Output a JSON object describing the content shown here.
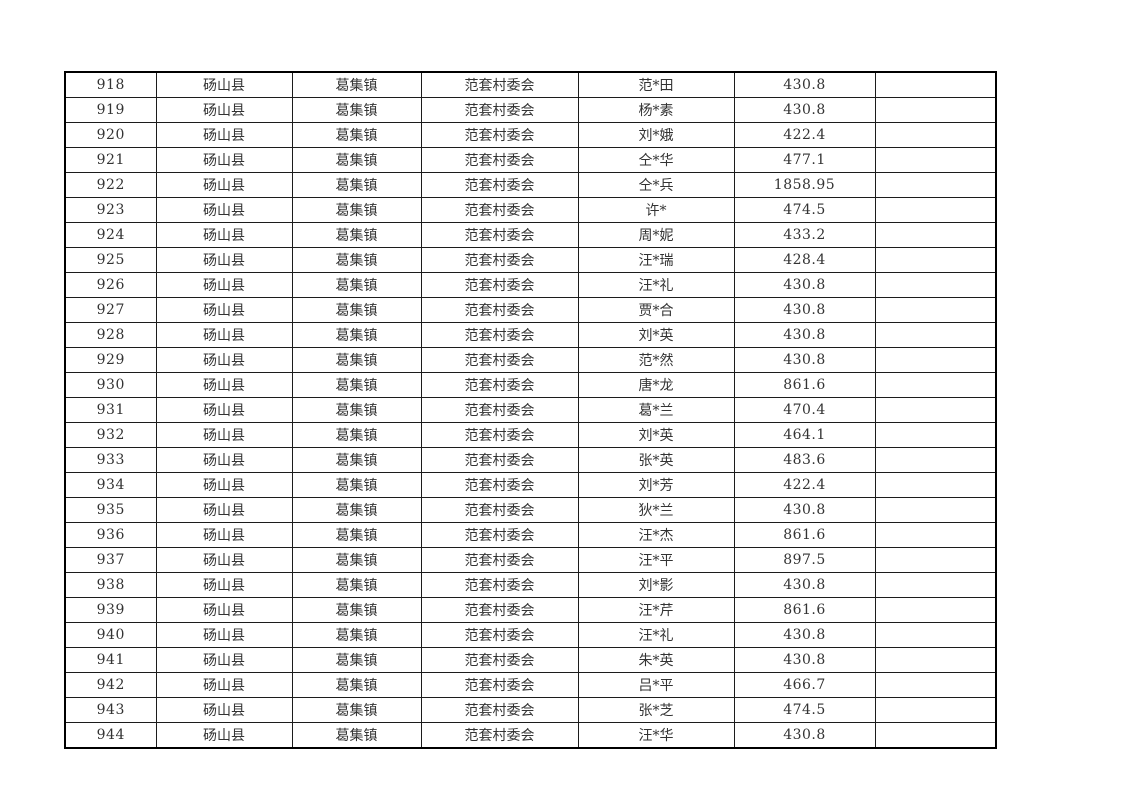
{
  "colors": {
    "background": "#ffffff",
    "border": "#1c1c1c",
    "outer_border": "#000000",
    "text": "#333333"
  },
  "table": {
    "column_keys": [
      "no",
      "county",
      "town",
      "village",
      "name",
      "amount",
      "note"
    ],
    "column_semantic_names": [
      "row-number-cell",
      "county-cell",
      "town-cell",
      "village-committee-cell",
      "masked-name-cell",
      "amount-cell",
      "empty-note-cell"
    ],
    "rows": [
      {
        "no": "918",
        "county": "砀山县",
        "town": "葛集镇",
        "village": "范套村委会",
        "name": "范*田",
        "amount": "430.8",
        "note": ""
      },
      {
        "no": "919",
        "county": "砀山县",
        "town": "葛集镇",
        "village": "范套村委会",
        "name": "杨*素",
        "amount": "430.8",
        "note": ""
      },
      {
        "no": "920",
        "county": "砀山县",
        "town": "葛集镇",
        "village": "范套村委会",
        "name": "刘*娥",
        "amount": "422.4",
        "note": ""
      },
      {
        "no": "921",
        "county": "砀山县",
        "town": "葛集镇",
        "village": "范套村委会",
        "name": "仝*华",
        "amount": "477.1",
        "note": ""
      },
      {
        "no": "922",
        "county": "砀山县",
        "town": "葛集镇",
        "village": "范套村委会",
        "name": "仝*兵",
        "amount": "1858.95",
        "note": ""
      },
      {
        "no": "923",
        "county": "砀山县",
        "town": "葛集镇",
        "village": "范套村委会",
        "name": "许*",
        "amount": "474.5",
        "note": ""
      },
      {
        "no": "924",
        "county": "砀山县",
        "town": "葛集镇",
        "village": "范套村委会",
        "name": "周*妮",
        "amount": "433.2",
        "note": ""
      },
      {
        "no": "925",
        "county": "砀山县",
        "town": "葛集镇",
        "village": "范套村委会",
        "name": "汪*瑞",
        "amount": "428.4",
        "note": ""
      },
      {
        "no": "926",
        "county": "砀山县",
        "town": "葛集镇",
        "village": "范套村委会",
        "name": "汪*礼",
        "amount": "430.8",
        "note": ""
      },
      {
        "no": "927",
        "county": "砀山县",
        "town": "葛集镇",
        "village": "范套村委会",
        "name": "贾*合",
        "amount": "430.8",
        "note": ""
      },
      {
        "no": "928",
        "county": "砀山县",
        "town": "葛集镇",
        "village": "范套村委会",
        "name": "刘*英",
        "amount": "430.8",
        "note": ""
      },
      {
        "no": "929",
        "county": "砀山县",
        "town": "葛集镇",
        "village": "范套村委会",
        "name": "范*然",
        "amount": "430.8",
        "note": ""
      },
      {
        "no": "930",
        "county": "砀山县",
        "town": "葛集镇",
        "village": "范套村委会",
        "name": "唐*龙",
        "amount": "861.6",
        "note": ""
      },
      {
        "no": "931",
        "county": "砀山县",
        "town": "葛集镇",
        "village": "范套村委会",
        "name": "葛*兰",
        "amount": "470.4",
        "note": ""
      },
      {
        "no": "932",
        "county": "砀山县",
        "town": "葛集镇",
        "village": "范套村委会",
        "name": "刘*英",
        "amount": "464.1",
        "note": ""
      },
      {
        "no": "933",
        "county": "砀山县",
        "town": "葛集镇",
        "village": "范套村委会",
        "name": "张*英",
        "amount": "483.6",
        "note": ""
      },
      {
        "no": "934",
        "county": "砀山县",
        "town": "葛集镇",
        "village": "范套村委会",
        "name": "刘*芳",
        "amount": "422.4",
        "note": ""
      },
      {
        "no": "935",
        "county": "砀山县",
        "town": "葛集镇",
        "village": "范套村委会",
        "name": "狄*兰",
        "amount": "430.8",
        "note": ""
      },
      {
        "no": "936",
        "county": "砀山县",
        "town": "葛集镇",
        "village": "范套村委会",
        "name": "汪*杰",
        "amount": "861.6",
        "note": ""
      },
      {
        "no": "937",
        "county": "砀山县",
        "town": "葛集镇",
        "village": "范套村委会",
        "name": "汪*平",
        "amount": "897.5",
        "note": ""
      },
      {
        "no": "938",
        "county": "砀山县",
        "town": "葛集镇",
        "village": "范套村委会",
        "name": "刘*影",
        "amount": "430.8",
        "note": ""
      },
      {
        "no": "939",
        "county": "砀山县",
        "town": "葛集镇",
        "village": "范套村委会",
        "name": "汪*芹",
        "amount": "861.6",
        "note": ""
      },
      {
        "no": "940",
        "county": "砀山县",
        "town": "葛集镇",
        "village": "范套村委会",
        "name": "汪*礼",
        "amount": "430.8",
        "note": ""
      },
      {
        "no": "941",
        "county": "砀山县",
        "town": "葛集镇",
        "village": "范套村委会",
        "name": "朱*英",
        "amount": "430.8",
        "note": ""
      },
      {
        "no": "942",
        "county": "砀山县",
        "town": "葛集镇",
        "village": "范套村委会",
        "name": "吕*平",
        "amount": "466.7",
        "note": ""
      },
      {
        "no": "943",
        "county": "砀山县",
        "town": "葛集镇",
        "village": "范套村委会",
        "name": "张*芝",
        "amount": "474.5",
        "note": ""
      },
      {
        "no": "944",
        "county": "砀山县",
        "town": "葛集镇",
        "village": "范套村委会",
        "name": "汪*华",
        "amount": "430.8",
        "note": ""
      }
    ]
  }
}
